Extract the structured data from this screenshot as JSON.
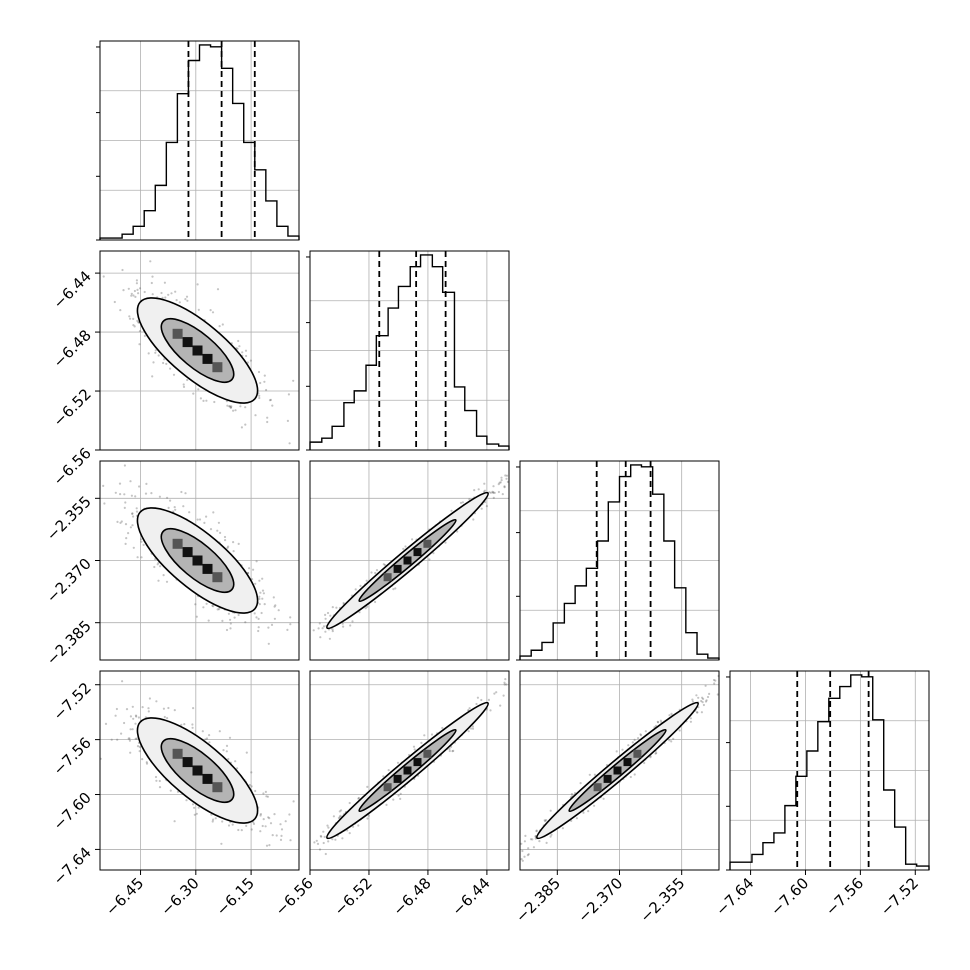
{
  "figure_type": "corner plot",
  "colors": {
    "line": "#000000",
    "grid": "#b0b0b0",
    "scatter": "#555555",
    "background": "#ffffff"
  },
  "chart_data": {
    "type": "corner",
    "grid": true,
    "quantiles_marked": [
      0.16,
      0.5,
      0.84
    ],
    "parameters": [
      {
        "index": 0,
        "range": [
          -6.56,
          -6.02
        ],
        "ticks": [
          -6.45,
          -6.3,
          -6.15
        ],
        "tick_labels": [
          "−6.45",
          "−6.30",
          "−6.15"
        ],
        "quantiles": [
          -6.32,
          -6.23,
          -6.14
        ],
        "hist_bin_edges": [
          -6.56,
          -6.53,
          -6.5,
          -6.47,
          -6.44,
          -6.41,
          -6.38,
          -6.35,
          -6.32,
          -6.29,
          -6.26,
          -6.23,
          -6.2,
          -6.17,
          -6.14,
          -6.11,
          -6.08,
          -6.05,
          -6.02
        ],
        "hist_counts": [
          1,
          1,
          3,
          7,
          15,
          28,
          50,
          75,
          92,
          100,
          99,
          88,
          70,
          50,
          36,
          20,
          7,
          2
        ]
      },
      {
        "index": 1,
        "range": [
          -6.56,
          -6.425
        ],
        "ticks": [
          -6.56,
          -6.52,
          -6.48,
          -6.44
        ],
        "tick_labels": [
          "−6.56",
          "−6.52",
          "−6.48",
          "−6.44"
        ],
        "quantiles": [
          -6.513,
          -6.488,
          -6.468
        ],
        "hist_bin_edges": [
          -6.56,
          -6.552,
          -6.545,
          -6.537,
          -6.53,
          -6.522,
          -6.515,
          -6.507,
          -6.5,
          -6.492,
          -6.485,
          -6.477,
          -6.47,
          -6.462,
          -6.455,
          -6.447,
          -6.44,
          -6.432,
          -6.425
        ],
        "hist_counts": [
          4,
          6,
          12,
          24,
          30,
          43,
          58,
          72,
          83,
          93,
          99,
          93,
          80,
          32,
          20,
          7,
          3,
          2
        ]
      },
      {
        "index": 2,
        "range": [
          -2.394,
          -2.346
        ],
        "ticks": [
          -2.385,
          -2.37,
          -2.355
        ],
        "tick_labels": [
          "−2.385",
          "−2.370",
          "−2.355"
        ],
        "quantiles": [
          -2.3755,
          -2.3685,
          -2.3625
        ],
        "hist_bin_edges": [
          -2.394,
          -2.3913,
          -2.3887,
          -2.386,
          -2.3833,
          -2.3807,
          -2.378,
          -2.3753,
          -2.3727,
          -2.37,
          -2.3673,
          -2.3647,
          -2.362,
          -2.3593,
          -2.3567,
          -2.354,
          -2.3513,
          -2.3487,
          -2.346
        ],
        "hist_counts": [
          2,
          5,
          9,
          19,
          29,
          38,
          47,
          61,
          81,
          94,
          100,
          99,
          85,
          61,
          37,
          14,
          3,
          1
        ]
      },
      {
        "index": 3,
        "range": [
          -7.655,
          -7.51
        ],
        "ticks": [
          -7.64,
          -7.6,
          -7.56,
          -7.52
        ],
        "tick_labels": [
          "−7.64",
          "−7.60",
          "−7.56",
          "−7.52"
        ],
        "quantiles": [
          -7.606,
          -7.582,
          -7.554
        ],
        "hist_bin_edges": [
          -7.655,
          -7.647,
          -7.639,
          -7.631,
          -7.623,
          -7.615,
          -7.607,
          -7.599,
          -7.591,
          -7.583,
          -7.575,
          -7.567,
          -7.559,
          -7.551,
          -7.543,
          -7.535,
          -7.527,
          -7.519,
          -7.51
        ],
        "hist_counts": [
          4,
          4,
          8,
          14,
          19,
          33,
          48,
          61,
          76,
          88,
          94,
          100,
          99,
          77,
          41,
          22,
          3,
          2
        ]
      }
    ]
  }
}
